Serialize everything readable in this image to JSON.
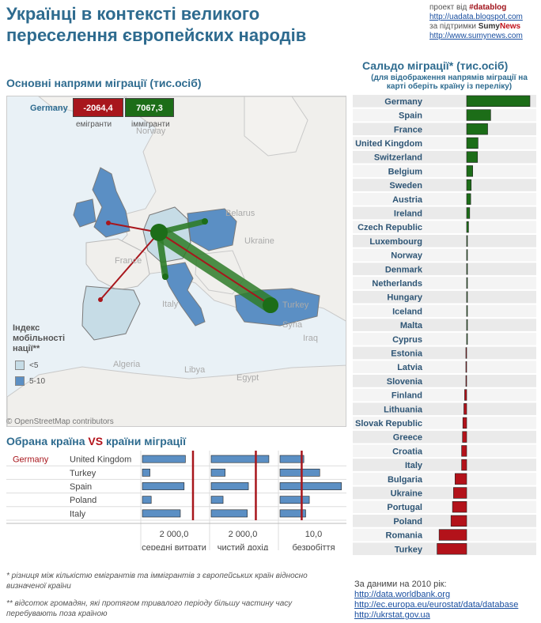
{
  "header": {
    "title": "Українці в контексті великого переселення європейских народів",
    "credits": {
      "project_prefix": "проект від ",
      "project_tag": "#datablog",
      "link1": "http://uadata.blogspot.com",
      "support_prefix": "за підтримки ",
      "support_sumy": "Sumy",
      "support_news": "News",
      "link2": "http://www.sumynews.com"
    }
  },
  "map": {
    "title": "Основні напрями міграції (тис.осіб)",
    "selected_country": "Germany",
    "emigrants_value": "-2064,4",
    "immigrants_value": "7067,3",
    "emigrants_caption": "емігранти",
    "immigrants_caption": "іммігранти",
    "labels": [
      "Norway",
      "Belarus",
      "Ukraine",
      "France",
      "Italy",
      "Turkey",
      "Algeria",
      "Libya",
      "Egypt",
      "Iraq",
      "Syria"
    ],
    "legend": {
      "title": "Індекс мобільності нації**",
      "items": [
        "<5",
        "5-10"
      ],
      "colors": [
        "#c6dce6",
        "#5b8fc4"
      ]
    },
    "credit": "© OpenStreetMap contributors"
  },
  "comparison": {
    "title_left": "Обрана країна ",
    "title_vs": "VS",
    "title_right": " країни міграції",
    "selected": "Germany",
    "countries": [
      "United Kingdom",
      "Turkey",
      "Spain",
      "Poland",
      "Italy"
    ],
    "panels": [
      {
        "label": "середні витрати",
        "tick": "2 000,0"
      },
      {
        "label": "чистий дохід",
        "tick": "2 000,0"
      },
      {
        "label": "безробіття",
        "tick": "10,0"
      }
    ]
  },
  "chart_data": [
    {
      "type": "bar",
      "title": "Сальдо міграції* (тис.осіб)",
      "subtitle": "(для відображення напрямів міграції на карті оберіть країну із переліку)",
      "categories": [
        "Germany",
        "Spain",
        "France",
        "United Kingdom",
        "Switzerland",
        "Belgium",
        "Sweden",
        "Austria",
        "Ireland",
        "Czech Republic",
        "Luxembourg",
        "Norway",
        "Denmark",
        "Netherlands",
        "Hungary",
        "Iceland",
        "Malta",
        "Cyprus",
        "Estonia",
        "Latvia",
        "Slovenia",
        "Finland",
        "Lithuania",
        "Slovak Republic",
        "Greece",
        "Croatia",
        "Italy",
        "Bulgaria",
        "Ukraine",
        "Portugal",
        "Poland",
        "Romania",
        "Turkey"
      ],
      "values": [
        5003,
        1900,
        1660,
        900,
        860,
        480,
        360,
        320,
        240,
        150,
        60,
        50,
        45,
        40,
        30,
        25,
        15,
        10,
        -15,
        -25,
        -35,
        -160,
        -220,
        -300,
        -330,
        -400,
        -400,
        -920,
        -1040,
        -1120,
        -1240,
        -2180,
        -2340
      ],
      "colors": {
        "positive": "#1c6d18",
        "negative": "#b3121a"
      }
    },
    {
      "type": "bar",
      "title": "середні витрати",
      "categories": [
        "United Kingdom",
        "Turkey",
        "Spain",
        "Poland",
        "Italy"
      ],
      "values": [
        1700,
        300,
        1650,
        350,
        1500
      ],
      "reference": {
        "Germany": 2000
      },
      "xlabel": "середні витрати"
    },
    {
      "type": "bar",
      "title": "чистий дохід",
      "categories": [
        "United Kingdom",
        "Turkey",
        "Spain",
        "Poland",
        "Italy"
      ],
      "values": [
        3100,
        750,
        2000,
        640,
        1940
      ],
      "reference": {
        "Germany": 2400
      },
      "xlabel": "чистий дохід"
    },
    {
      "type": "bar",
      "title": "безробіття",
      "categories": [
        "United Kingdom",
        "Turkey",
        "Spain",
        "Poland",
        "Italy"
      ],
      "values": [
        7.8,
        13.0,
        20.1,
        9.6,
        8.4
      ],
      "reference": {
        "Germany": 7.1
      },
      "xlabel": "безробіття"
    }
  ],
  "footnotes": {
    "note1": "* різниця між кількістю емігрантів та іммігрантів з європейських країн відносно визначеної країни",
    "note2": "** відсоток громадян, які протягом тривалого періоду більшу частину часу перебувають поза країною"
  },
  "sources": {
    "intro": "За даними на 2010 рік:",
    "links": [
      "http://data.worldbank.org",
      "http://ec.europa.eu/eurostat/data/database",
      "http://ukrstat.gov.ua"
    ]
  }
}
